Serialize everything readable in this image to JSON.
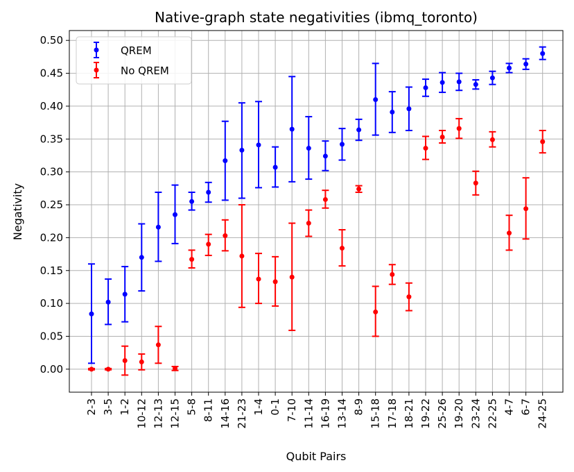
{
  "chart_data": {
    "type": "scatter",
    "title": "Native-graph state negativities (ibmq_toronto)",
    "xlabel": "Qubit Pairs",
    "ylabel": "Negativity",
    "ylim": [
      -0.035,
      0.515
    ],
    "grid": true,
    "legend_position": "top-left",
    "yticks": [
      "0.00",
      "0.05",
      "0.10",
      "0.15",
      "0.20",
      "0.25",
      "0.30",
      "0.35",
      "0.40",
      "0.45",
      "0.50"
    ],
    "categories": [
      "2-3",
      "3-5",
      "1-2",
      "10-12",
      "12-13",
      "12-15",
      "5-8",
      "8-11",
      "14-16",
      "21-23",
      "1-4",
      "0-1",
      "7-10",
      "11-14",
      "16-19",
      "13-14",
      "8-9",
      "15-18",
      "17-18",
      "18-21",
      "19-22",
      "25-26",
      "19-20",
      "23-24",
      "22-25",
      "4-7",
      "6-7",
      "24-25"
    ],
    "series": [
      {
        "name": "QREM",
        "color": "#0000ff",
        "values": [
          0.084,
          0.102,
          0.114,
          0.17,
          0.216,
          0.235,
          0.255,
          0.269,
          0.317,
          0.333,
          0.341,
          0.307,
          0.365,
          0.336,
          0.324,
          0.342,
          0.364,
          0.41,
          0.391,
          0.396,
          0.428,
          0.436,
          0.437,
          0.433,
          0.443,
          0.458,
          0.464,
          0.48
        ],
        "lower": [
          0.009,
          0.068,
          0.072,
          0.119,
          0.164,
          0.191,
          0.242,
          0.254,
          0.257,
          0.26,
          0.276,
          0.277,
          0.285,
          0.289,
          0.302,
          0.318,
          0.348,
          0.356,
          0.36,
          0.363,
          0.415,
          0.421,
          0.424,
          0.426,
          0.433,
          0.451,
          0.456,
          0.471
        ],
        "upper": [
          0.16,
          0.137,
          0.156,
          0.221,
          0.269,
          0.28,
          0.269,
          0.284,
          0.377,
          0.405,
          0.407,
          0.338,
          0.445,
          0.384,
          0.347,
          0.366,
          0.38,
          0.465,
          0.422,
          0.429,
          0.441,
          0.451,
          0.45,
          0.44,
          0.453,
          0.465,
          0.472,
          0.49
        ]
      },
      {
        "name": "No QREM",
        "color": "#ff0000",
        "values": [
          0.0,
          0.0,
          0.013,
          0.011,
          0.037,
          0.001,
          0.167,
          0.19,
          0.203,
          0.172,
          0.137,
          0.133,
          0.14,
          0.222,
          0.258,
          0.184,
          0.274,
          0.087,
          0.144,
          0.11,
          0.336,
          0.353,
          0.366,
          0.283,
          0.349,
          0.207,
          0.244,
          0.346
        ],
        "lower": [
          -0.001,
          -0.001,
          -0.009,
          -0.001,
          0.009,
          -0.002,
          0.154,
          0.173,
          0.18,
          0.094,
          0.1,
          0.096,
          0.059,
          0.202,
          0.245,
          0.157,
          0.269,
          0.05,
          0.129,
          0.089,
          0.319,
          0.344,
          0.351,
          0.265,
          0.338,
          0.181,
          0.198,
          0.329
        ],
        "upper": [
          0.001,
          0.001,
          0.035,
          0.023,
          0.065,
          0.004,
          0.181,
          0.205,
          0.227,
          0.25,
          0.176,
          0.171,
          0.222,
          0.242,
          0.272,
          0.212,
          0.279,
          0.126,
          0.159,
          0.131,
          0.354,
          0.363,
          0.381,
          0.301,
          0.361,
          0.234,
          0.291,
          0.363
        ]
      }
    ]
  }
}
